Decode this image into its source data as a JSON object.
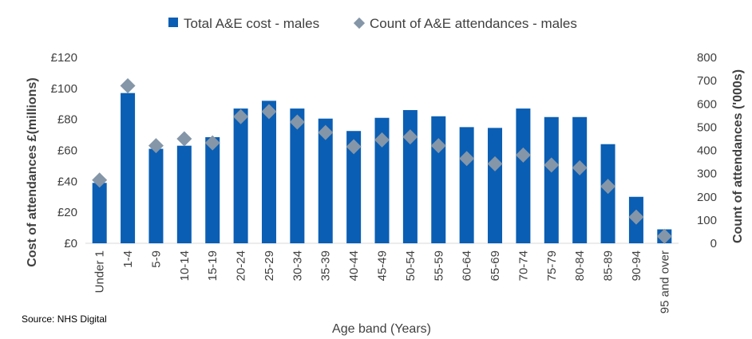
{
  "source": "Source: NHS Digital",
  "chart_data": {
    "type": "bar",
    "xlabel": "Age band (Years)",
    "ylabel": "Cost of attendances £(millions)",
    "y2label": "Count of attendances ('000s)",
    "ylim": [
      0,
      120
    ],
    "y2lim": [
      0,
      800
    ],
    "yticks": [
      "£0",
      "£20",
      "£40",
      "£60",
      "£80",
      "£100",
      "£120"
    ],
    "y2ticks": [
      "0",
      "100",
      "200",
      "300",
      "400",
      "500",
      "600",
      "700",
      "800"
    ],
    "legend_position": "top",
    "grid": false,
    "categories": [
      "Under 1",
      "1-4",
      "5-9",
      "10-14",
      "15-19",
      "20-24",
      "25-29",
      "30-34",
      "35-39",
      "40-44",
      "45-49",
      "50-54",
      "55-59",
      "60-64",
      "65-69",
      "70-74",
      "75-79",
      "80-84",
      "85-89",
      "90-94",
      "95 and over"
    ],
    "series": [
      {
        "name": "Total A&E cost - males",
        "kind": "bar",
        "axis": "left",
        "color": "#0a5eb4",
        "values": [
          39,
          97,
          61,
          63,
          68.5,
          87,
          92,
          87,
          80.5,
          72.5,
          81,
          86,
          82,
          75,
          74.5,
          87,
          81.5,
          81.5,
          64,
          30,
          9
        ]
      },
      {
        "name": "Count of A&E attendances - males",
        "kind": "marker",
        "axis": "right",
        "color": "#8496a8",
        "values": [
          272,
          678,
          420,
          450,
          432,
          545,
          567,
          522,
          477,
          416,
          445,
          458,
          420,
          365,
          342,
          380,
          337,
          325,
          245,
          113,
          30
        ]
      }
    ]
  }
}
